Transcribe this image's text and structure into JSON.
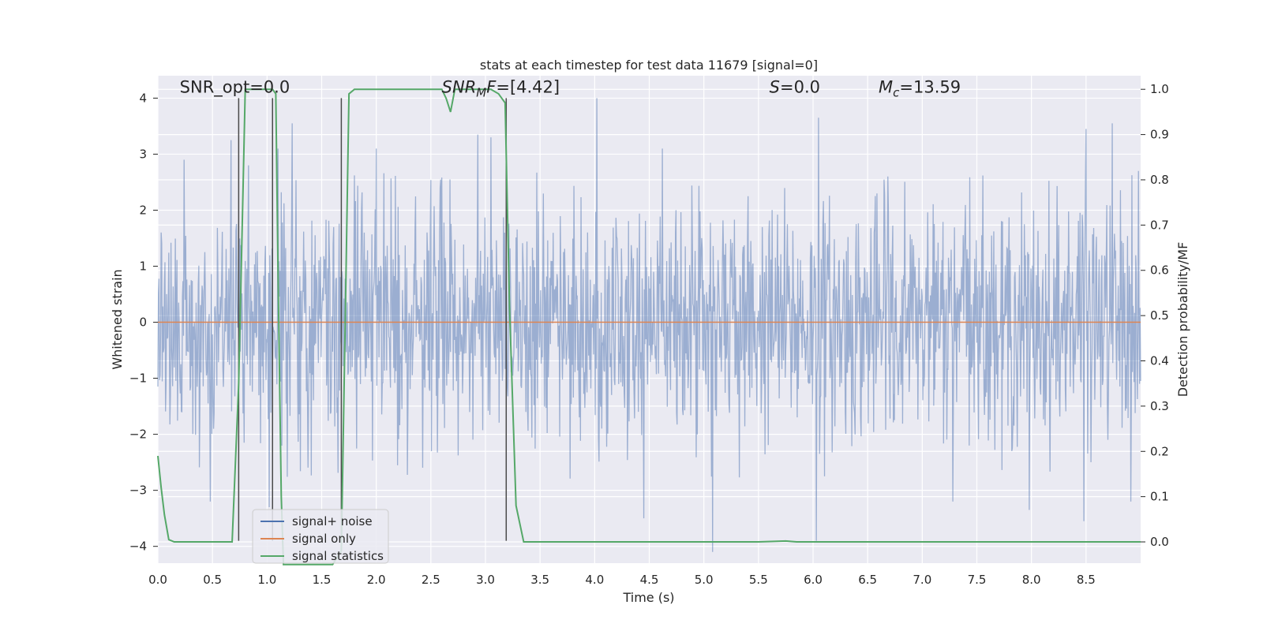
{
  "chart_data": {
    "type": "line",
    "title": "stats at each timestep for test data 11679 [signal=0]",
    "xlabel": "Time (s)",
    "ylabel": "Whitened strain",
    "y2label": "Detection probability/MF",
    "xlim": [
      0.0,
      9.0
    ],
    "ylim": [
      -4.3,
      4.4
    ],
    "y2lim": [
      -0.047,
      1.03
    ],
    "x_ticks": [
      "0.0",
      "0.5",
      "1.0",
      "1.5",
      "2.0",
      "2.5",
      "3.0",
      "3.5",
      "4.0",
      "4.5",
      "5.0",
      "5.5",
      "6.0",
      "6.5",
      "7.0",
      "7.5",
      "8.0",
      "8.5"
    ],
    "y_ticks": [
      "4",
      "3",
      "2",
      "1",
      "0",
      "−1",
      "−2",
      "−3",
      "−4"
    ],
    "y2_ticks": [
      "1.0",
      "0.9",
      "0.8",
      "0.7",
      "0.6",
      "0.5",
      "0.4",
      "0.3",
      "0.2",
      "0.1",
      "0.0"
    ],
    "grid": true,
    "legend_position": "bottom-left",
    "annotations": [
      {
        "text": "SNR_opt=0.0",
        "x": 0.2,
        "y": 4.1
      },
      {
        "text": "SNR_MF=[4.42]",
        "x": 2.6,
        "y": 4.1
      },
      {
        "text": "S=0.0",
        "x": 5.6,
        "y": 4.1
      },
      {
        "text": "M_c=13.59",
        "x": 6.6,
        "y": 4.1
      }
    ],
    "series": [
      {
        "name": "signal+ noise",
        "axis": "left",
        "color": "#4c72b0",
        "alpha": 0.5,
        "sample_rate_hz": 200,
        "envelope_std": 1.05,
        "peaks": [
          {
            "x": 0.24,
            "y": 2.9
          },
          {
            "x": 0.67,
            "y": 3.25
          },
          {
            "x": 0.83,
            "y": 2.8
          },
          {
            "x": 1.1,
            "y": 3.1
          },
          {
            "x": 1.23,
            "y": 3.55
          },
          {
            "x": 2.0,
            "y": 3.1
          },
          {
            "x": 2.93,
            "y": 3.35
          },
          {
            "x": 3.05,
            "y": 3.3
          },
          {
            "x": 4.02,
            "y": 4.0
          },
          {
            "x": 4.62,
            "y": 3.1
          },
          {
            "x": 6.05,
            "y": 3.65
          },
          {
            "x": 8.5,
            "y": 3.45
          },
          {
            "x": 8.74,
            "y": 3.55
          },
          {
            "x": 8.98,
            "y": 2.7
          },
          {
            "x": 0.48,
            "y": -3.2
          },
          {
            "x": 1.02,
            "y": -3.3
          },
          {
            "x": 4.45,
            "y": -3.5
          },
          {
            "x": 5.08,
            "y": -4.1
          },
          {
            "x": 6.03,
            "y": -3.9
          },
          {
            "x": 7.28,
            "y": -3.2
          },
          {
            "x": 7.98,
            "y": -3.35
          },
          {
            "x": 8.48,
            "y": -3.55
          },
          {
            "x": 8.91,
            "y": -3.2
          }
        ]
      },
      {
        "name": "signal only",
        "axis": "left",
        "color": "#dd8452",
        "x": [
          0.0,
          9.0
        ],
        "y": [
          0.0,
          0.0
        ]
      },
      {
        "name": "signal statistics",
        "axis": "right",
        "color": "#55a868",
        "x": [
          0.0,
          0.03,
          0.06,
          0.1,
          0.15,
          0.3,
          0.5,
          0.68,
          0.74,
          0.78,
          0.8,
          0.85,
          0.9,
          0.95,
          1.0,
          1.05,
          1.08,
          1.1,
          1.13,
          1.15,
          1.5,
          1.6,
          1.68,
          1.72,
          1.75,
          1.8,
          2.0,
          2.3,
          2.5,
          2.6,
          2.64,
          2.68,
          2.72,
          2.77,
          2.85,
          2.95,
          3.05,
          3.12,
          3.18,
          3.22,
          3.28,
          3.35,
          3.5,
          4.0,
          5.0,
          5.5,
          5.75,
          5.85,
          6.0,
          7.0,
          8.0,
          9.0
        ],
        "y": [
          0.19,
          0.12,
          0.06,
          0.005,
          0.0,
          0.0,
          0.0,
          0.0,
          0.35,
          0.78,
          1.0,
          1.0,
          1.0,
          1.0,
          1.0,
          1.0,
          0.99,
          0.6,
          0.1,
          -0.05,
          -0.05,
          -0.05,
          -0.02,
          0.55,
          0.99,
          1.0,
          1.0,
          1.0,
          1.0,
          1.0,
          0.98,
          0.95,
          1.0,
          1.0,
          1.0,
          1.0,
          1.0,
          0.99,
          0.97,
          0.52,
          0.08,
          0.0,
          0.0,
          0.0,
          0.0,
          0.0,
          0.002,
          0.0,
          0.0,
          0.0,
          0.0,
          0.0
        ]
      }
    ],
    "vertical_markers": [
      {
        "x": 0.74,
        "y_from": -3.9,
        "y_to": 4.0,
        "color": "#4a4a4a"
      },
      {
        "x": 1.05,
        "y_from": -3.9,
        "y_to": 4.0,
        "color": "#4a4a4a"
      },
      {
        "x": 1.68,
        "y_from": -3.9,
        "y_to": 4.0,
        "color": "#4a4a4a"
      },
      {
        "x": 3.19,
        "y_from": -3.9,
        "y_to": 4.0,
        "color": "#4a4a4a"
      }
    ],
    "legend": [
      {
        "label": "signal+ noise",
        "color": "#4c72b0"
      },
      {
        "label": "signal only",
        "color": "#dd8452"
      },
      {
        "label": "signal statistics",
        "color": "#55a868"
      }
    ]
  },
  "colors": {
    "plot_background": "#eaeaf2",
    "grid": "#ffffff",
    "text": "#262626"
  }
}
